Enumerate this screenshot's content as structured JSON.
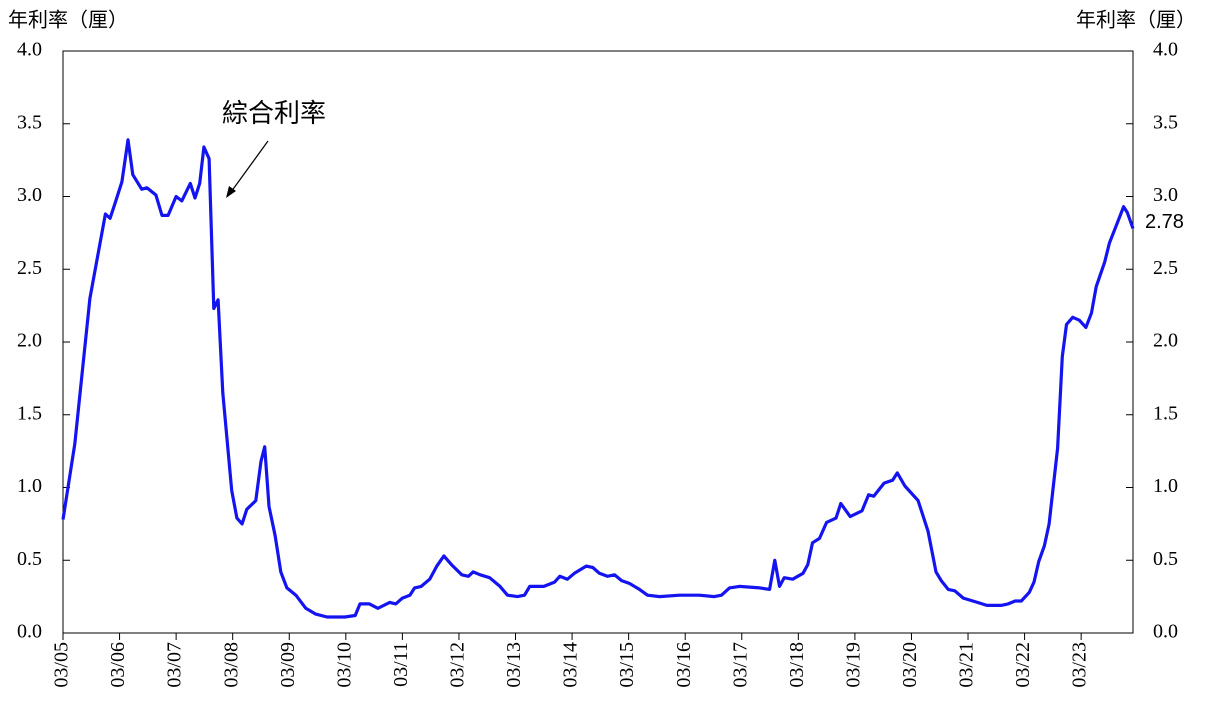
{
  "chart_data": {
    "type": "line",
    "ylabel": "年利率（厘）",
    "y2label": "年利率（厘）",
    "annotation": "綜合利率",
    "last_value_label": "2.78",
    "xlim": [
      0,
      227
    ],
    "xticks": [
      {
        "value": 0,
        "label": "03/05"
      },
      {
        "value": 12,
        "label": "03/06"
      },
      {
        "value": 24,
        "label": "03/07"
      },
      {
        "value": 36,
        "label": "03/08"
      },
      {
        "value": 48,
        "label": "03/09"
      },
      {
        "value": 60,
        "label": "03/10"
      },
      {
        "value": 72,
        "label": "03/11"
      },
      {
        "value": 84,
        "label": "03/12"
      },
      {
        "value": 96,
        "label": "03/13"
      },
      {
        "value": 108,
        "label": "03/14"
      },
      {
        "value": 120,
        "label": "03/15"
      },
      {
        "value": 132,
        "label": "03/16"
      },
      {
        "value": 144,
        "label": "03/17"
      },
      {
        "value": 156,
        "label": "03/18"
      },
      {
        "value": 168,
        "label": "03/19"
      },
      {
        "value": 180,
        "label": "03/20"
      },
      {
        "value": 192,
        "label": "03/21"
      },
      {
        "value": 204,
        "label": "03/22"
      },
      {
        "value": 216,
        "label": "03/23"
      }
    ],
    "ylim": [
      0,
      4
    ],
    "yticks": [
      {
        "value": 0,
        "label": "0.0"
      },
      0.5,
      {
        "value": 1,
        "label": "1.0"
      },
      1.5,
      {
        "value": 2,
        "label": "2.0"
      },
      2.5,
      {
        "value": 3,
        "label": "3.0"
      },
      3.5,
      {
        "value": 4,
        "label": "4.0"
      }
    ],
    "y2lim": [
      0,
      4
    ],
    "y2ticks": [
      {
        "value": 0,
        "label": "0.0"
      },
      0.5,
      {
        "value": 1,
        "label": "1.0"
      },
      1.5,
      {
        "value": 2,
        "label": "2.0"
      },
      2.5,
      {
        "value": 3,
        "label": "3.0"
      },
      3.5,
      {
        "value": 4,
        "label": "4.0"
      }
    ],
    "series": [
      {
        "color": "#1414f0",
        "x": [
          0,
          2.5,
          5.7,
          9,
          10,
          11,
          12.5,
          13.8,
          14.8,
          16.7,
          17.8,
          19.7,
          21,
          22.3,
          24,
          25.2,
          27,
          28,
          29,
          29.9,
          31,
          32,
          32.9,
          33.9,
          35.8,
          36.9,
          38,
          39,
          40.9,
          42,
          42.8,
          43.7,
          45,
          46.2,
          47.5,
          49.4,
          51.5,
          53.6,
          56,
          59.8,
          62,
          63,
          65,
          66.8,
          69.3,
          70.6,
          72,
          73.6,
          74.6,
          76,
          77.8,
          79.3,
          80.8,
          82.4,
          84.6,
          86,
          87,
          88.5,
          90.5,
          92.7,
          94.3,
          96.4,
          97.9,
          99,
          102,
          104.3,
          105.4,
          107,
          108.5,
          111,
          112.4,
          113.8,
          115.5,
          117,
          118.5,
          120.2,
          122.3,
          124,
          126.6,
          130.8,
          135,
          138.2,
          139.7,
          141.4,
          143.5,
          147.8,
          149.9,
          151,
          152,
          153,
          154.8,
          157,
          158,
          159,
          160.5,
          162,
          164,
          165,
          167,
          169.5,
          170.9,
          172,
          174.2,
          176,
          177,
          178.6,
          181.4,
          183.5,
          185.2,
          186.3,
          187.8,
          189.2,
          191,
          194,
          196,
          199,
          200.5,
          202,
          203.3,
          205,
          206,
          207,
          208.2,
          209.2,
          211,
          212,
          212.9,
          214.2,
          215.6,
          217,
          218.2,
          219.2,
          221,
          222,
          223.7,
          225,
          225.8,
          227
        ],
        "values": [
          0.78,
          1.3,
          2.3,
          2.88,
          2.85,
          2.95,
          3.1,
          3.39,
          3.15,
          3.05,
          3.06,
          3.01,
          2.87,
          2.87,
          3.0,
          2.97,
          3.09,
          2.99,
          3.09,
          3.34,
          3.26,
          2.23,
          2.29,
          1.65,
          0.98,
          0.79,
          0.75,
          0.85,
          0.91,
          1.18,
          1.28,
          0.87,
          0.67,
          0.42,
          0.31,
          0.26,
          0.17,
          0.13,
          0.11,
          0.11,
          0.12,
          0.2,
          0.2,
          0.17,
          0.21,
          0.2,
          0.24,
          0.26,
          0.31,
          0.32,
          0.37,
          0.46,
          0.53,
          0.47,
          0.4,
          0.39,
          0.42,
          0.4,
          0.38,
          0.32,
          0.26,
          0.25,
          0.26,
          0.32,
          0.32,
          0.35,
          0.39,
          0.37,
          0.41,
          0.46,
          0.45,
          0.41,
          0.39,
          0.4,
          0.36,
          0.34,
          0.3,
          0.26,
          0.25,
          0.26,
          0.26,
          0.25,
          0.26,
          0.31,
          0.32,
          0.31,
          0.3,
          0.5,
          0.32,
          0.38,
          0.37,
          0.41,
          0.47,
          0.62,
          0.65,
          0.76,
          0.79,
          0.89,
          0.8,
          0.84,
          0.95,
          0.94,
          1.03,
          1.05,
          1.1,
          1.01,
          0.91,
          0.7,
          0.42,
          0.36,
          0.3,
          0.29,
          0.24,
          0.21,
          0.19,
          0.19,
          0.2,
          0.22,
          0.22,
          0.28,
          0.35,
          0.49,
          0.6,
          0.75,
          1.27,
          1.9,
          2.12,
          2.17,
          2.15,
          2.1,
          2.2,
          2.38,
          2.55,
          2.68,
          2.82,
          2.93,
          2.89,
          2.78
        ]
      }
    ]
  }
}
